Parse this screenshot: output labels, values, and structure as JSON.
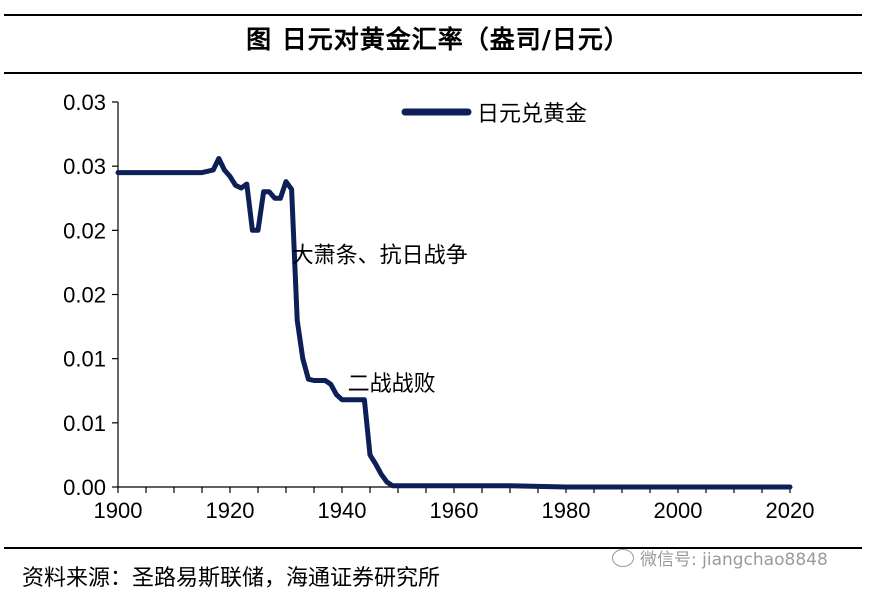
{
  "title": "图  日元对黄金汇率（盎司/日元）",
  "source": "资料来源：圣路易斯联储，海通证券研究所",
  "watermark": "微信号: jiangchao8848",
  "watermark_icon": "wechat-icon",
  "colors": {
    "series": "#0c1f57",
    "axis": "#000000",
    "rule": "#000000"
  },
  "chart_data": {
    "type": "line",
    "xlim": [
      1900,
      2020
    ],
    "ylim": [
      0,
      0.03
    ],
    "xticks": [
      1900,
      1920,
      1940,
      1960,
      1980,
      2000,
      2020
    ],
    "yticks": [
      {
        "value": 0,
        "label": "0.00"
      },
      {
        "value": 0.005,
        "label": "0.01"
      },
      {
        "value": 0.01,
        "label": "0.01"
      },
      {
        "value": 0.015,
        "label": "0.02"
      },
      {
        "value": 0.02,
        "label": "0.02"
      },
      {
        "value": 0.025,
        "label": "0.03"
      },
      {
        "value": 0.03,
        "label": "0.03"
      }
    ],
    "grid": false,
    "legend": "top-center",
    "series": [
      {
        "name": "日元兑黄金",
        "color": "#0c1f57",
        "x": [
          1900,
          1905,
          1910,
          1915,
          1917,
          1918,
          1919,
          1920,
          1921,
          1922,
          1923,
          1924,
          1925,
          1926,
          1927,
          1928,
          1929,
          1930,
          1931,
          1932,
          1933,
          1934,
          1935,
          1936,
          1937,
          1938,
          1939,
          1940,
          1941,
          1942,
          1943,
          1944,
          1945,
          1946,
          1947,
          1948,
          1949,
          1950,
          1960,
          1970,
          1980,
          1990,
          2000,
          2010,
          2020
        ],
        "y": [
          0.0245,
          0.0245,
          0.0245,
          0.0245,
          0.0247,
          0.0256,
          0.0247,
          0.0242,
          0.0235,
          0.0233,
          0.0236,
          0.02,
          0.02,
          0.023,
          0.023,
          0.0225,
          0.0225,
          0.0238,
          0.0232,
          0.013,
          0.01,
          0.0084,
          0.0083,
          0.0083,
          0.0083,
          0.008,
          0.0072,
          0.0068,
          0.0068,
          0.0068,
          0.0068,
          0.0068,
          0.0025,
          0.0018,
          0.001,
          0.0004,
          0.0001,
          0.0001,
          0.0001,
          0.0001,
          0.0,
          0.0,
          0.0,
          0.0,
          0.0
        ]
      }
    ],
    "annotations": [
      {
        "text": "大萧条、抗日战争",
        "x": 1931,
        "y": 0.0175
      },
      {
        "text": "二战战败",
        "x": 1941,
        "y": 0.0075
      }
    ]
  }
}
